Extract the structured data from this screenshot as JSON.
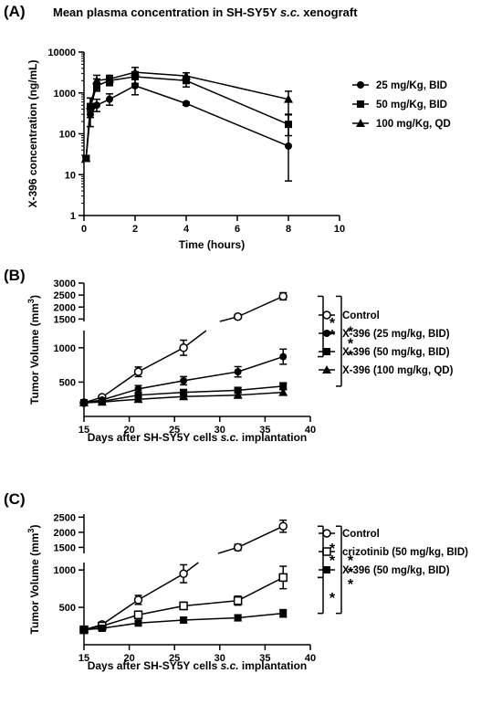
{
  "chart_data": [
    {
      "panel": "(A)",
      "type": "line",
      "title_parts": [
        "Mean plasma concentration in SH-SY5Y ",
        "s.c.",
        " xenograft"
      ],
      "xlabel": "Time (hours)",
      "ylabel": "X-396 concentration (ng/mL)",
      "xlim": [
        0,
        10
      ],
      "ylim": [
        1,
        10000
      ],
      "yscale": "log",
      "xticks": [
        0,
        2,
        4,
        6,
        8,
        10
      ],
      "yticks": [
        1,
        10,
        100,
        1000,
        10000
      ],
      "ytick_labels": [
        "1",
        "10",
        "100",
        "1000",
        "10000"
      ],
      "legend_position": "right",
      "series": [
        {
          "name": "25 mg/Kg, BID",
          "marker": "circle",
          "x": [
            0.083,
            0.25,
            0.5,
            1,
            2,
            4,
            8
          ],
          "y": [
            25,
            300,
            500,
            700,
            1500,
            550,
            50
          ],
          "err": [
            [
              3,
              3
            ],
            [
              150,
              250
            ],
            [
              150,
              200
            ],
            [
              200,
              250
            ],
            [
              600,
              800
            ],
            [
              50,
              50
            ],
            [
              43,
              250
            ]
          ]
        },
        {
          "name": "50 mg/Kg, BID",
          "marker": "square",
          "x": [
            0.083,
            0.25,
            0.5,
            1,
            2,
            4,
            8
          ],
          "y": [
            25,
            450,
            1500,
            2000,
            2500,
            2000,
            170
          ],
          "err": [
            [
              3,
              3
            ],
            [
              200,
              300
            ],
            [
              400,
              700
            ],
            [
              500,
              500
            ],
            [
              800,
              800
            ],
            [
              600,
              500
            ],
            [
              80,
              120
            ]
          ]
        },
        {
          "name": "100 mg/Kg, QD",
          "marker": "triangle",
          "x": [
            0.083,
            0.25,
            0.5,
            1,
            2,
            4,
            8
          ],
          "y": [
            25,
            500,
            2000,
            2200,
            3200,
            2600,
            700
          ],
          "err": [
            [
              3,
              3
            ],
            [
              150,
              250
            ],
            [
              800,
              700
            ],
            [
              600,
              500
            ],
            [
              1000,
              1000
            ],
            [
              500,
              500
            ],
            [
              400,
              400
            ]
          ]
        }
      ]
    },
    {
      "panel": "(B)",
      "type": "line",
      "xlabel_parts": [
        "Days after SH-SY5Y cells ",
        "s.c.",
        " implantation"
      ],
      "ylabel": "Tumor Volume (mm",
      "ylabel_sup": "3",
      "ylabel_close": ")",
      "xlim": [
        15,
        40
      ],
      "xticks": [
        15,
        20,
        25,
        30,
        35,
        40
      ],
      "ylim_lower": [
        0,
        1250
      ],
      "yticks_lower": [
        500,
        1000
      ],
      "ylim_upper": [
        1400,
        3000
      ],
      "yticks_upper": [
        1500,
        2000,
        2500,
        3000
      ],
      "ytick_labels": [
        "500",
        "1000",
        "1500",
        "2000",
        "2500",
        "3000"
      ],
      "legend_position": "right",
      "significance": [
        "* *",
        "* * *"
      ],
      "series": [
        {
          "name": "Control",
          "marker": "open-circle",
          "x": [
            15,
            17,
            21,
            26,
            32,
            37
          ],
          "y": [
            200,
            280,
            650,
            1000,
            1600,
            2450
          ],
          "err": [
            20,
            30,
            70,
            110,
            90,
            150
          ]
        },
        {
          "name": "X-396 (25 mg/kg, BID)",
          "marker": "circle",
          "x": [
            15,
            17,
            21,
            26,
            32,
            37
          ],
          "y": [
            200,
            240,
            400,
            520,
            650,
            870
          ],
          "err": [
            20,
            25,
            50,
            60,
            75,
            110
          ]
        },
        {
          "name": "X-396 (50 mg/kg, BID)",
          "marker": "square",
          "x": [
            15,
            17,
            21,
            26,
            32,
            37
          ],
          "y": [
            200,
            220,
            310,
            350,
            380,
            440
          ],
          "err": [
            15,
            20,
            30,
            30,
            35,
            50
          ]
        },
        {
          "name": "X-396 (100 mg/kg, QD)",
          "marker": "triangle",
          "x": [
            15,
            17,
            21,
            26,
            32,
            37
          ],
          "y": [
            200,
            210,
            250,
            290,
            310,
            350
          ],
          "err": [
            15,
            15,
            25,
            25,
            30,
            40
          ]
        }
      ]
    },
    {
      "panel": "(C)",
      "type": "line",
      "xlabel_parts": [
        "Days after SH-SY5Y cells ",
        "s.c.",
        " implantation"
      ],
      "ylabel": "Tumor Volume (mm",
      "ylabel_sup": "3",
      "ylabel_close": ")",
      "xlim": [
        15,
        40
      ],
      "xticks": [
        15,
        20,
        25,
        30,
        35,
        40
      ],
      "ylim_lower": [
        0,
        1100
      ],
      "yticks_lower": [
        500,
        1000
      ],
      "ylim_upper": [
        1300,
        2600
      ],
      "yticks_upper": [
        1500,
        2000,
        2500
      ],
      "ytick_labels": [
        "500",
        "1000",
        "1500",
        "2000",
        "2500"
      ],
      "legend_position": "right",
      "significance": [
        "* *",
        "*",
        "* * *"
      ],
      "series": [
        {
          "name": "Control",
          "marker": "open-circle",
          "x": [
            15,
            17,
            21,
            26,
            32,
            37
          ],
          "y": [
            200,
            270,
            600,
            950,
            1500,
            2200
          ],
          "err": [
            20,
            30,
            60,
            120,
            100,
            200
          ]
        },
        {
          "name": "crizotinib (50 mg/kg, BID)",
          "marker": "open-square",
          "x": [
            15,
            17,
            21,
            26,
            32,
            37
          ],
          "y": [
            200,
            250,
            400,
            520,
            590,
            900
          ],
          "err": [
            20,
            25,
            50,
            50,
            60,
            150
          ]
        },
        {
          "name": "X-396 (50 mg/kg, BID)",
          "marker": "square",
          "x": [
            15,
            17,
            21,
            26,
            32,
            37
          ],
          "y": [
            200,
            220,
            290,
            330,
            360,
            420
          ],
          "err": [
            15,
            20,
            30,
            40,
            40,
            50
          ]
        }
      ]
    }
  ]
}
